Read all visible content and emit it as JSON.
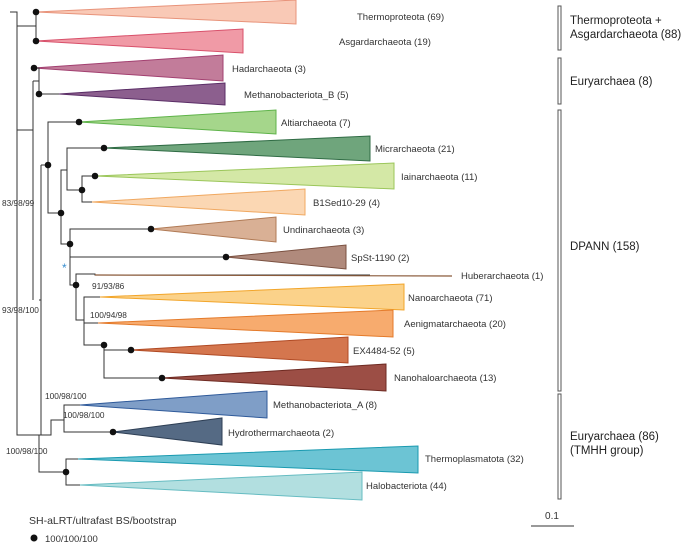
{
  "clades": [
    {
      "name": "Thermoproteota (69)",
      "fill": "#f9c9b6",
      "stroke": "#e8937a"
    },
    {
      "name": "Asgardarchaeota (19)",
      "fill": "#f09aa6",
      "stroke": "#d8506a"
    },
    {
      "name": "Hadarchaeota (3)",
      "fill": "#c27c9a",
      "stroke": "#a24070"
    },
    {
      "name": "Methanobacteriota_B (5)",
      "fill": "#8c5f8e",
      "stroke": "#5a2d66"
    },
    {
      "name": "Altiarchaeota (7)",
      "fill": "#a5d68b",
      "stroke": "#5fb34a"
    },
    {
      "name": "Micrarchaeota (21)",
      "fill": "#6fa57c",
      "stroke": "#2f6b44"
    },
    {
      "name": "Iainarchaeota (11)",
      "fill": "#d4e8a6",
      "stroke": "#9bc65a"
    },
    {
      "name": "B1Sed10-29 (4)",
      "fill": "#fbd7b3",
      "stroke": "#f0a860"
    },
    {
      "name": "Undinarchaeota (3)",
      "fill": "#d9b095",
      "stroke": "#b07a55"
    },
    {
      "name": "SpSt-1190 (2)",
      "fill": "#b08a7c",
      "stroke": "#7a5040"
    },
    {
      "name": "Huberarchaeota (1)",
      "fill": "#8a5a3a",
      "stroke": "#8a5a3a"
    },
    {
      "name": "Nanoarchaeota (71)",
      "fill": "#fbd28a",
      "stroke": "#f2a52a"
    },
    {
      "name": "Aenigmatarchaeota (20)",
      "fill": "#f7ab6e",
      "stroke": "#e47a2a"
    },
    {
      "name": "EX4484-52 (5)",
      "fill": "#d4764e",
      "stroke": "#b04a24"
    },
    {
      "name": "Nanohaloarchaeota (13)",
      "fill": "#9c4e45",
      "stroke": "#6e2a22"
    },
    {
      "name": "Methanobacteriota_A (8)",
      "fill": "#7f9ec7",
      "stroke": "#2f5a9a"
    },
    {
      "name": "Hydrothermarchaeota (2)",
      "fill": "#556a84",
      "stroke": "#2e3f55"
    },
    {
      "name": "Thermoplasmatota (32)",
      "fill": "#6cc4d4",
      "stroke": "#1a9ab0"
    },
    {
      "name": "Halobacteriota (44)",
      "fill": "#b2dfe0",
      "stroke": "#66bcc2"
    }
  ],
  "supports": [
    "83/98/99",
    "93/98/100",
    "91/93/86",
    "100/94/98",
    "100/98/100",
    "100/98/100",
    "100/98/100"
  ],
  "groups": [
    {
      "line1": "Thermoproteota +",
      "line2": "Asgardarchaeota (88)"
    },
    {
      "line1": "Euryarchaea (8)",
      "line2": ""
    },
    {
      "line1": "DPANN (158)",
      "line2": ""
    },
    {
      "line1": "Euryarchaea (86)",
      "line2": "(TMHH group)"
    }
  ],
  "legend": {
    "title": "SH-aLRT/ultrafast BS/bootstrap",
    "item": "100/100/100"
  },
  "scale": {
    "label": "0.1"
  },
  "star": "*"
}
